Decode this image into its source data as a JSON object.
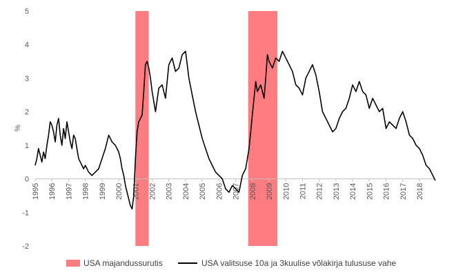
{
  "chart_data": {
    "type": "line",
    "title": "",
    "xlabel": "",
    "ylabel": "%",
    "ylim": [
      -2,
      5
    ],
    "yticks": [
      -2,
      -1,
      0,
      1,
      2,
      3,
      4,
      5
    ],
    "xlim": [
      1995.0,
      2018.95
    ],
    "xticks": [
      "1995",
      "1996",
      "1997",
      "1998",
      "1999",
      "2000",
      "2001",
      "2002",
      "2003",
      "2004",
      "2005",
      "2006",
      "2007",
      "2008",
      "2009",
      "2010",
      "2011",
      "2012",
      "2013",
      "2014",
      "2015",
      "2016",
      "2017",
      "2018"
    ],
    "grid": false,
    "legend_position": "bottom",
    "recessions": {
      "name": "USA majandussurutis",
      "color": "#ff7c80",
      "periods": [
        [
          2001.0,
          2001.8
        ],
        [
          2007.75,
          2009.5
        ]
      ]
    },
    "series": [
      {
        "name": "USA valitsuse 10a ja 3kuulise võlakirja tulususe vahe",
        "color": "#000000",
        "x": [
          1995.0,
          1995.1,
          1995.2,
          1995.3,
          1995.4,
          1995.5,
          1995.6,
          1995.7,
          1995.8,
          1995.9,
          1996.0,
          1996.1,
          1996.2,
          1996.3,
          1996.4,
          1996.5,
          1996.6,
          1996.7,
          1996.8,
          1996.9,
          1997.0,
          1997.1,
          1997.2,
          1997.3,
          1997.4,
          1997.5,
          1997.6,
          1997.7,
          1997.8,
          1997.9,
          1998.0,
          1998.2,
          1998.4,
          1998.6,
          1998.8,
          1999.0,
          1999.2,
          1999.4,
          1999.6,
          1999.8,
          2000.0,
          2000.1,
          2000.2,
          2000.3,
          2000.4,
          2000.5,
          2000.6,
          2000.7,
          2000.8,
          2000.9,
          2001.0,
          2001.1,
          2001.2,
          2001.3,
          2001.4,
          2001.5,
          2001.6,
          2001.7,
          2001.8,
          2001.9,
          2002.0,
          2002.2,
          2002.4,
          2002.6,
          2002.8,
          2003.0,
          2003.2,
          2003.4,
          2003.6,
          2003.8,
          2004.0,
          2004.2,
          2004.4,
          2004.6,
          2004.8,
          2005.0,
          2005.2,
          2005.4,
          2005.6,
          2005.8,
          2006.0,
          2006.2,
          2006.4,
          2006.6,
          2006.8,
          2007.0,
          2007.2,
          2007.4,
          2007.6,
          2007.8,
          2008.0,
          2008.1,
          2008.2,
          2008.3,
          2008.4,
          2008.5,
          2008.6,
          2008.7,
          2008.8,
          2008.9,
          2009.0,
          2009.2,
          2009.4,
          2009.6,
          2009.8,
          2010.0,
          2010.2,
          2010.4,
          2010.6,
          2010.8,
          2011.0,
          2011.2,
          2011.4,
          2011.6,
          2011.8,
          2012.0,
          2012.2,
          2012.4,
          2012.6,
          2012.8,
          2013.0,
          2013.2,
          2013.4,
          2013.6,
          2013.8,
          2014.0,
          2014.2,
          2014.4,
          2014.6,
          2014.8,
          2015.0,
          2015.2,
          2015.4,
          2015.6,
          2015.8,
          2016.0,
          2016.2,
          2016.4,
          2016.6,
          2016.8,
          2017.0,
          2017.2,
          2017.4,
          2017.6,
          2017.8,
          2018.0,
          2018.2,
          2018.4,
          2018.6,
          2018.8,
          2018.95
        ],
        "y": [
          0.4,
          0.6,
          0.9,
          0.7,
          0.5,
          0.8,
          0.6,
          1.0,
          1.3,
          1.7,
          1.6,
          1.4,
          1.1,
          1.6,
          1.8,
          1.3,
          1.0,
          1.5,
          1.2,
          1.7,
          1.4,
          1.1,
          0.9,
          1.3,
          1.2,
          0.9,
          0.6,
          0.5,
          0.4,
          0.3,
          0.4,
          0.2,
          0.1,
          0.2,
          0.3,
          0.6,
          0.9,
          1.3,
          1.1,
          1.0,
          0.8,
          0.6,
          0.3,
          0.1,
          -0.2,
          -0.4,
          -0.6,
          -0.8,
          -0.9,
          -0.5,
          0.6,
          1.4,
          1.7,
          1.8,
          1.9,
          2.6,
          3.4,
          3.5,
          3.3,
          3.0,
          2.6,
          2.0,
          2.7,
          2.8,
          2.4,
          3.4,
          3.6,
          3.2,
          3.3,
          3.7,
          3.8,
          3.0,
          2.5,
          2.0,
          1.6,
          1.2,
          0.9,
          0.6,
          0.4,
          0.2,
          0.1,
          0.0,
          -0.3,
          -0.4,
          -0.2,
          -0.3,
          -0.4,
          0.1,
          0.3,
          0.9,
          1.9,
          2.4,
          2.9,
          2.6,
          2.7,
          2.8,
          2.6,
          2.4,
          3.0,
          3.7,
          3.5,
          3.3,
          3.6,
          3.5,
          3.8,
          3.6,
          3.4,
          3.2,
          2.8,
          2.7,
          2.5,
          3.0,
          3.2,
          3.4,
          3.1,
          2.6,
          2.0,
          1.8,
          1.6,
          1.4,
          1.5,
          1.8,
          2.0,
          2.1,
          2.4,
          2.8,
          2.6,
          2.9,
          2.6,
          2.5,
          2.1,
          2.4,
          2.2,
          2.0,
          2.1,
          1.5,
          1.7,
          1.6,
          1.5,
          1.8,
          2.0,
          1.7,
          1.3,
          1.2,
          1.0,
          0.9,
          0.7,
          0.4,
          0.3,
          0.1,
          -0.05
        ]
      }
    ]
  }
}
